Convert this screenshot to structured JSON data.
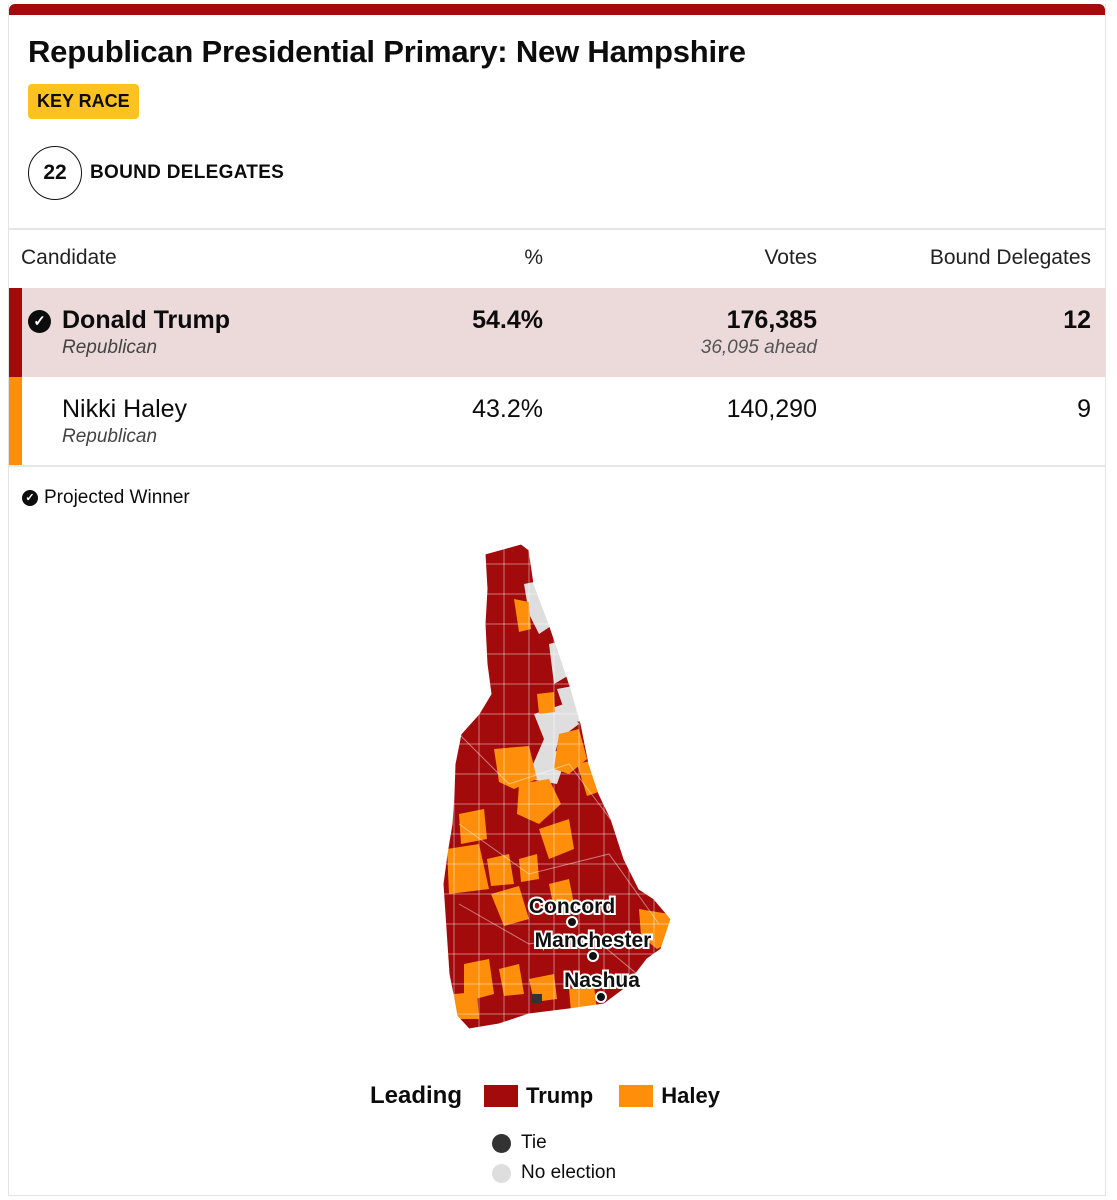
{
  "header": {
    "title": "Republican Presidential Primary: New Hampshire",
    "badge": "KEY RACE",
    "delegates_count": "22",
    "delegates_label": "BOUND DELEGATES"
  },
  "table": {
    "columns": [
      "Candidate",
      "%",
      "Votes",
      "Bound Delegates"
    ],
    "rows": [
      {
        "name": "Donald Trump",
        "party": "Republican",
        "pct": "54.4%",
        "votes": "176,385",
        "ahead": "36,095 ahead",
        "delegates": "12",
        "color": "#a20a0c",
        "winner": true
      },
      {
        "name": "Nikki Haley",
        "party": "Republican",
        "pct": "43.2%",
        "votes": "140,290",
        "ahead": "",
        "delegates": "9",
        "color": "#ff8e0a",
        "winner": false
      }
    ]
  },
  "projected_label": "Projected Winner",
  "map": {
    "cities": [
      "Concord",
      "Manchester",
      "Nashua"
    ],
    "colors": {
      "trump": "#a20a0c",
      "haley": "#ff8e0a",
      "tie": "#333333",
      "none": "#dedede"
    }
  },
  "legend": {
    "title": "Leading",
    "items": [
      {
        "label": "Trump",
        "color": "#a20a0c"
      },
      {
        "label": "Haley",
        "color": "#ff8e0a"
      }
    ],
    "extra": [
      {
        "label": "Tie",
        "color": "#333333"
      },
      {
        "label": "No election",
        "color": "#dedede"
      }
    ]
  }
}
